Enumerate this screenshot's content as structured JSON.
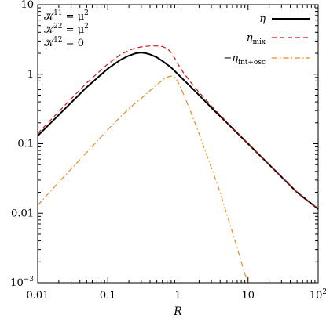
{
  "chart_data": {
    "type": "line",
    "xlabel": "R",
    "ylabel": "",
    "x_scale": "log",
    "y_scale": "log",
    "xlim": [
      0.01,
      100
    ],
    "ylim": [
      0.001,
      10
    ],
    "grid": false,
    "legend_position": "top-right",
    "x_ticks": [
      {
        "value": 0.01,
        "label": "0.01"
      },
      {
        "value": 0.1,
        "label": "0.1"
      },
      {
        "value": 1,
        "label": "1"
      },
      {
        "value": 10,
        "label": "10"
      },
      {
        "value": 100,
        "label": "10",
        "sup": "2"
      }
    ],
    "y_ticks": [
      {
        "value": 0.001,
        "label": "10",
        "sup": "−3"
      },
      {
        "value": 0.01,
        "label": "0.01"
      },
      {
        "value": 0.1,
        "label": "0.1"
      },
      {
        "value": 1,
        "label": "1"
      },
      {
        "value": 10,
        "label": "10"
      }
    ],
    "annotation": [
      {
        "main": "𝒦",
        "sup": "11",
        "rest": " = μ",
        "sup2": "2"
      },
      {
        "main": "𝒦",
        "sup": "22",
        "rest": " = μ",
        "sup2": "2"
      },
      {
        "main": "𝒦",
        "sup": "12",
        "rest": " = 0",
        "sup2": ""
      }
    ],
    "series": [
      {
        "name": "η",
        "name_sub": "",
        "color": "#000000",
        "dash": "solid",
        "x": [
          0.01,
          0.02,
          0.05,
          0.1,
          0.15,
          0.2,
          0.25,
          0.3,
          0.35,
          0.4,
          0.5,
          0.6,
          0.8,
          1,
          1.5,
          2,
          3,
          5,
          10,
          20,
          50,
          100
        ],
        "y": [
          0.13,
          0.26,
          0.65,
          1.2,
          1.6,
          1.85,
          2.0,
          2.05,
          2.0,
          1.93,
          1.75,
          1.55,
          1.25,
          1.0,
          0.67,
          0.5,
          0.33,
          0.2,
          0.1,
          0.05,
          0.02,
          0.0115
        ]
      },
      {
        "name": "η",
        "name_sub": "mix",
        "color": "#cc1111",
        "dash": "dashed",
        "x": [
          0.01,
          0.02,
          0.05,
          0.1,
          0.15,
          0.2,
          0.25,
          0.3,
          0.4,
          0.5,
          0.6,
          0.7,
          0.8,
          0.9,
          1,
          1.2,
          1.5,
          2,
          3,
          5,
          10,
          20,
          50,
          100
        ],
        "y": [
          0.14,
          0.29,
          0.75,
          1.4,
          1.9,
          2.2,
          2.38,
          2.47,
          2.55,
          2.55,
          2.5,
          2.35,
          2.05,
          1.7,
          1.4,
          1.05,
          0.78,
          0.55,
          0.35,
          0.205,
          0.1,
          0.05,
          0.02,
          0.0115
        ]
      },
      {
        "name": "−η",
        "name_sub": "int+osc",
        "color": "#e8891f",
        "dash": "dashdot",
        "x": [
          0.01,
          0.02,
          0.05,
          0.1,
          0.2,
          0.3,
          0.4,
          0.5,
          0.6,
          0.7,
          0.8,
          0.9,
          1,
          1.2,
          1.5,
          2,
          3,
          4,
          5,
          6,
          7,
          8,
          9,
          10
        ],
        "y": [
          0.013,
          0.028,
          0.075,
          0.16,
          0.32,
          0.45,
          0.58,
          0.7,
          0.82,
          0.91,
          0.94,
          0.9,
          0.78,
          0.52,
          0.3,
          0.14,
          0.045,
          0.02,
          0.0095,
          0.0053,
          0.0032,
          0.002,
          0.00135,
          0.00098
        ]
      }
    ]
  }
}
